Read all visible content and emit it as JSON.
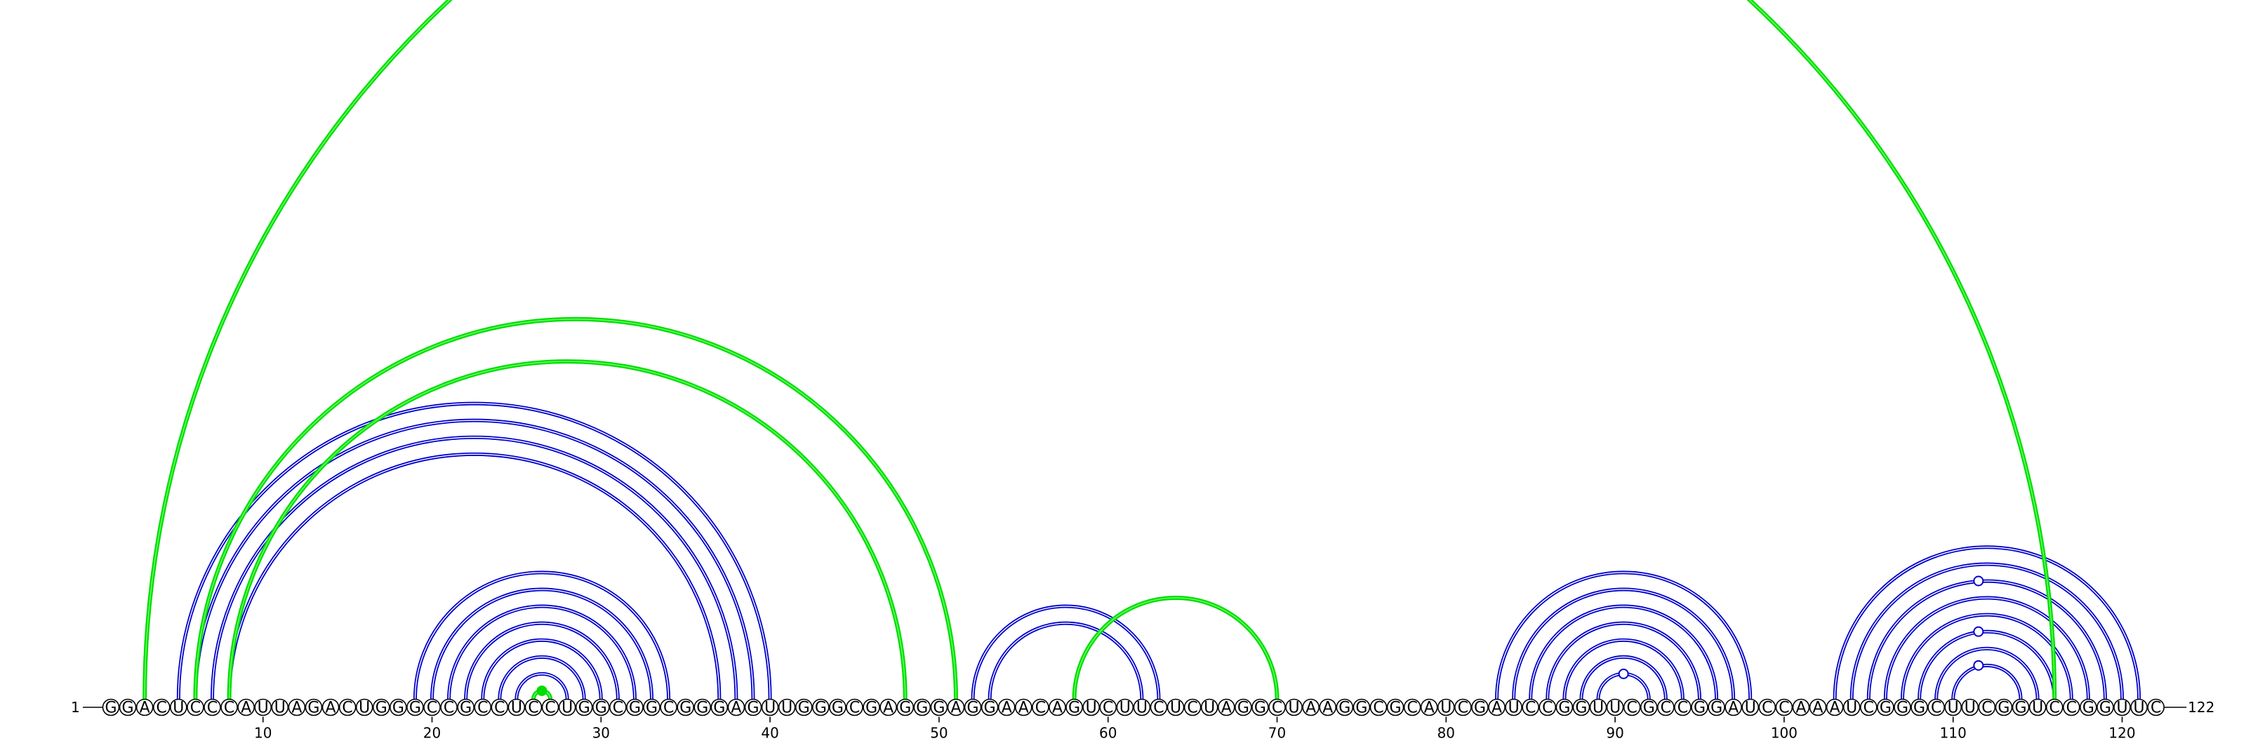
{
  "sequence": "GGACUCCCAUUAGACUGGGCCGCCUCCUGGCGGCGGGAGUUGGGCGAGGGAGGAACAGUCUUCUCUAGGCUAAGGCGCAUCGAUCCGGUUCGCCGGAUCCAAAUCGGGCUUCGGUCCGGUUC",
  "start_label": "1",
  "end_label": "122",
  "ticks": [
    10,
    20,
    30,
    40,
    50,
    60,
    70,
    80,
    90,
    100,
    110,
    120
  ],
  "colors": {
    "blue_pair": "#0000cc",
    "green_pair": "#00dd00",
    "backbone": "#000000"
  },
  "chart_data": {
    "type": "arc-diagram",
    "length": 122,
    "blue_pairs": [
      [
        5,
        40
      ],
      [
        6,
        39
      ],
      [
        7,
        38
      ],
      [
        8,
        37
      ],
      [
        19,
        34
      ],
      [
        20,
        33
      ],
      [
        21,
        32
      ],
      [
        22,
        31
      ],
      [
        23,
        30
      ],
      [
        24,
        29
      ],
      [
        25,
        28
      ],
      [
        52,
        63
      ],
      [
        53,
        62
      ],
      [
        83,
        98
      ],
      [
        84,
        97
      ],
      [
        85,
        96
      ],
      [
        86,
        95
      ],
      [
        87,
        94
      ],
      [
        88,
        93
      ],
      [
        89,
        92
      ],
      [
        103,
        121
      ],
      [
        104,
        120
      ],
      [
        105,
        119
      ],
      [
        106,
        118
      ],
      [
        107,
        117
      ],
      [
        108,
        116
      ],
      [
        109,
        115
      ],
      [
        110,
        114
      ]
    ],
    "green_pairs": [
      [
        3,
        116
      ],
      [
        6,
        51
      ],
      [
        8,
        48
      ],
      [
        26,
        27
      ],
      [
        58,
        70
      ]
    ],
    "markers": [
      {
        "type": "open",
        "at": 90.5,
        "pair": [
          89,
          92
        ]
      },
      {
        "type": "open",
        "at": 111.5,
        "pair": [
          105,
          119
        ]
      },
      {
        "type": "open",
        "at": 111.5,
        "pair": [
          108,
          116
        ]
      },
      {
        "type": "open",
        "at": 111.5,
        "pair": [
          110,
          114
        ]
      },
      {
        "type": "filled",
        "at": 26.5,
        "pair": [
          26,
          27
        ]
      }
    ]
  }
}
